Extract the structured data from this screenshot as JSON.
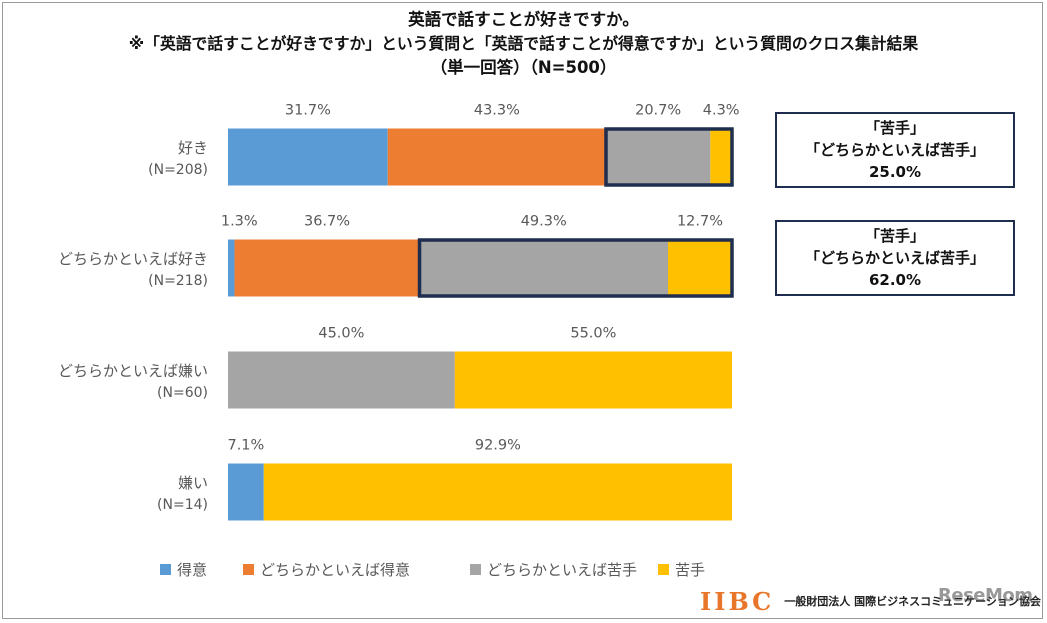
{
  "title": {
    "line1": "英語で話すことが好きですか。",
    "line2": "※「英語で話すことが好きですか」という質問と「英語で話すことが得意ですか」という質問のクロス集計結果",
    "line3": "（単一回答）（N=500）"
  },
  "colors": {
    "得意": "#5b9bd5",
    "どちらかといえば得意": "#ed7d31",
    "どちらかといえば苦手": "#a5a5a5",
    "苦手": "#ffc000",
    "highlight_border": "#1f2d4e"
  },
  "chart_data": {
    "type": "bar",
    "orientation": "horizontal",
    "stacked": true,
    "title": "英語で話すことが好きですか。",
    "categories": [
      "好き",
      "どちらかといえば好き",
      "どちらかといえば嫌い",
      "嫌い"
    ],
    "category_n": [
      "(N=208)",
      "(N=218)",
      "(N=60)",
      "(N=14)"
    ],
    "series": [
      {
        "name": "得意",
        "values": [
          31.7,
          1.3,
          0,
          7.1
        ]
      },
      {
        "name": "どちらかといえば得意",
        "values": [
          43.3,
          36.7,
          0,
          0
        ]
      },
      {
        "name": "どちらかといえば苦手",
        "values": [
          20.7,
          49.3,
          45.0,
          0
        ]
      },
      {
        "name": "苦手",
        "values": [
          4.3,
          12.7,
          55.0,
          92.9
        ]
      }
    ],
    "value_labels": [
      [
        "31.7%",
        "43.3%",
        "20.7%",
        "4.3%"
      ],
      [
        "1.3%",
        "36.7%",
        "49.3%",
        "12.7%"
      ],
      [
        "",
        "",
        "45.0%",
        "55.0%"
      ],
      [
        "7.1%",
        "",
        "",
        "92.9%"
      ]
    ],
    "xlim": [
      0,
      100
    ],
    "legend_position": "bottom",
    "highlights": [
      {
        "category_index": 0,
        "from_series": 2,
        "to_series": 3
      },
      {
        "category_index": 1,
        "from_series": 2,
        "to_series": 3
      }
    ]
  },
  "callouts": [
    {
      "line1": "「苦手」",
      "line2": "「どちらかといえば苦手」",
      "value": "25.0%"
    },
    {
      "line1": "「苦手」",
      "line2": "「どちらかといえば苦手」",
      "value": "62.0%"
    }
  ],
  "footer": {
    "logo": "IIBC",
    "org": "一般財団法人 国際ビジネスコミュニケーション協会",
    "watermark": "ReseMom"
  }
}
